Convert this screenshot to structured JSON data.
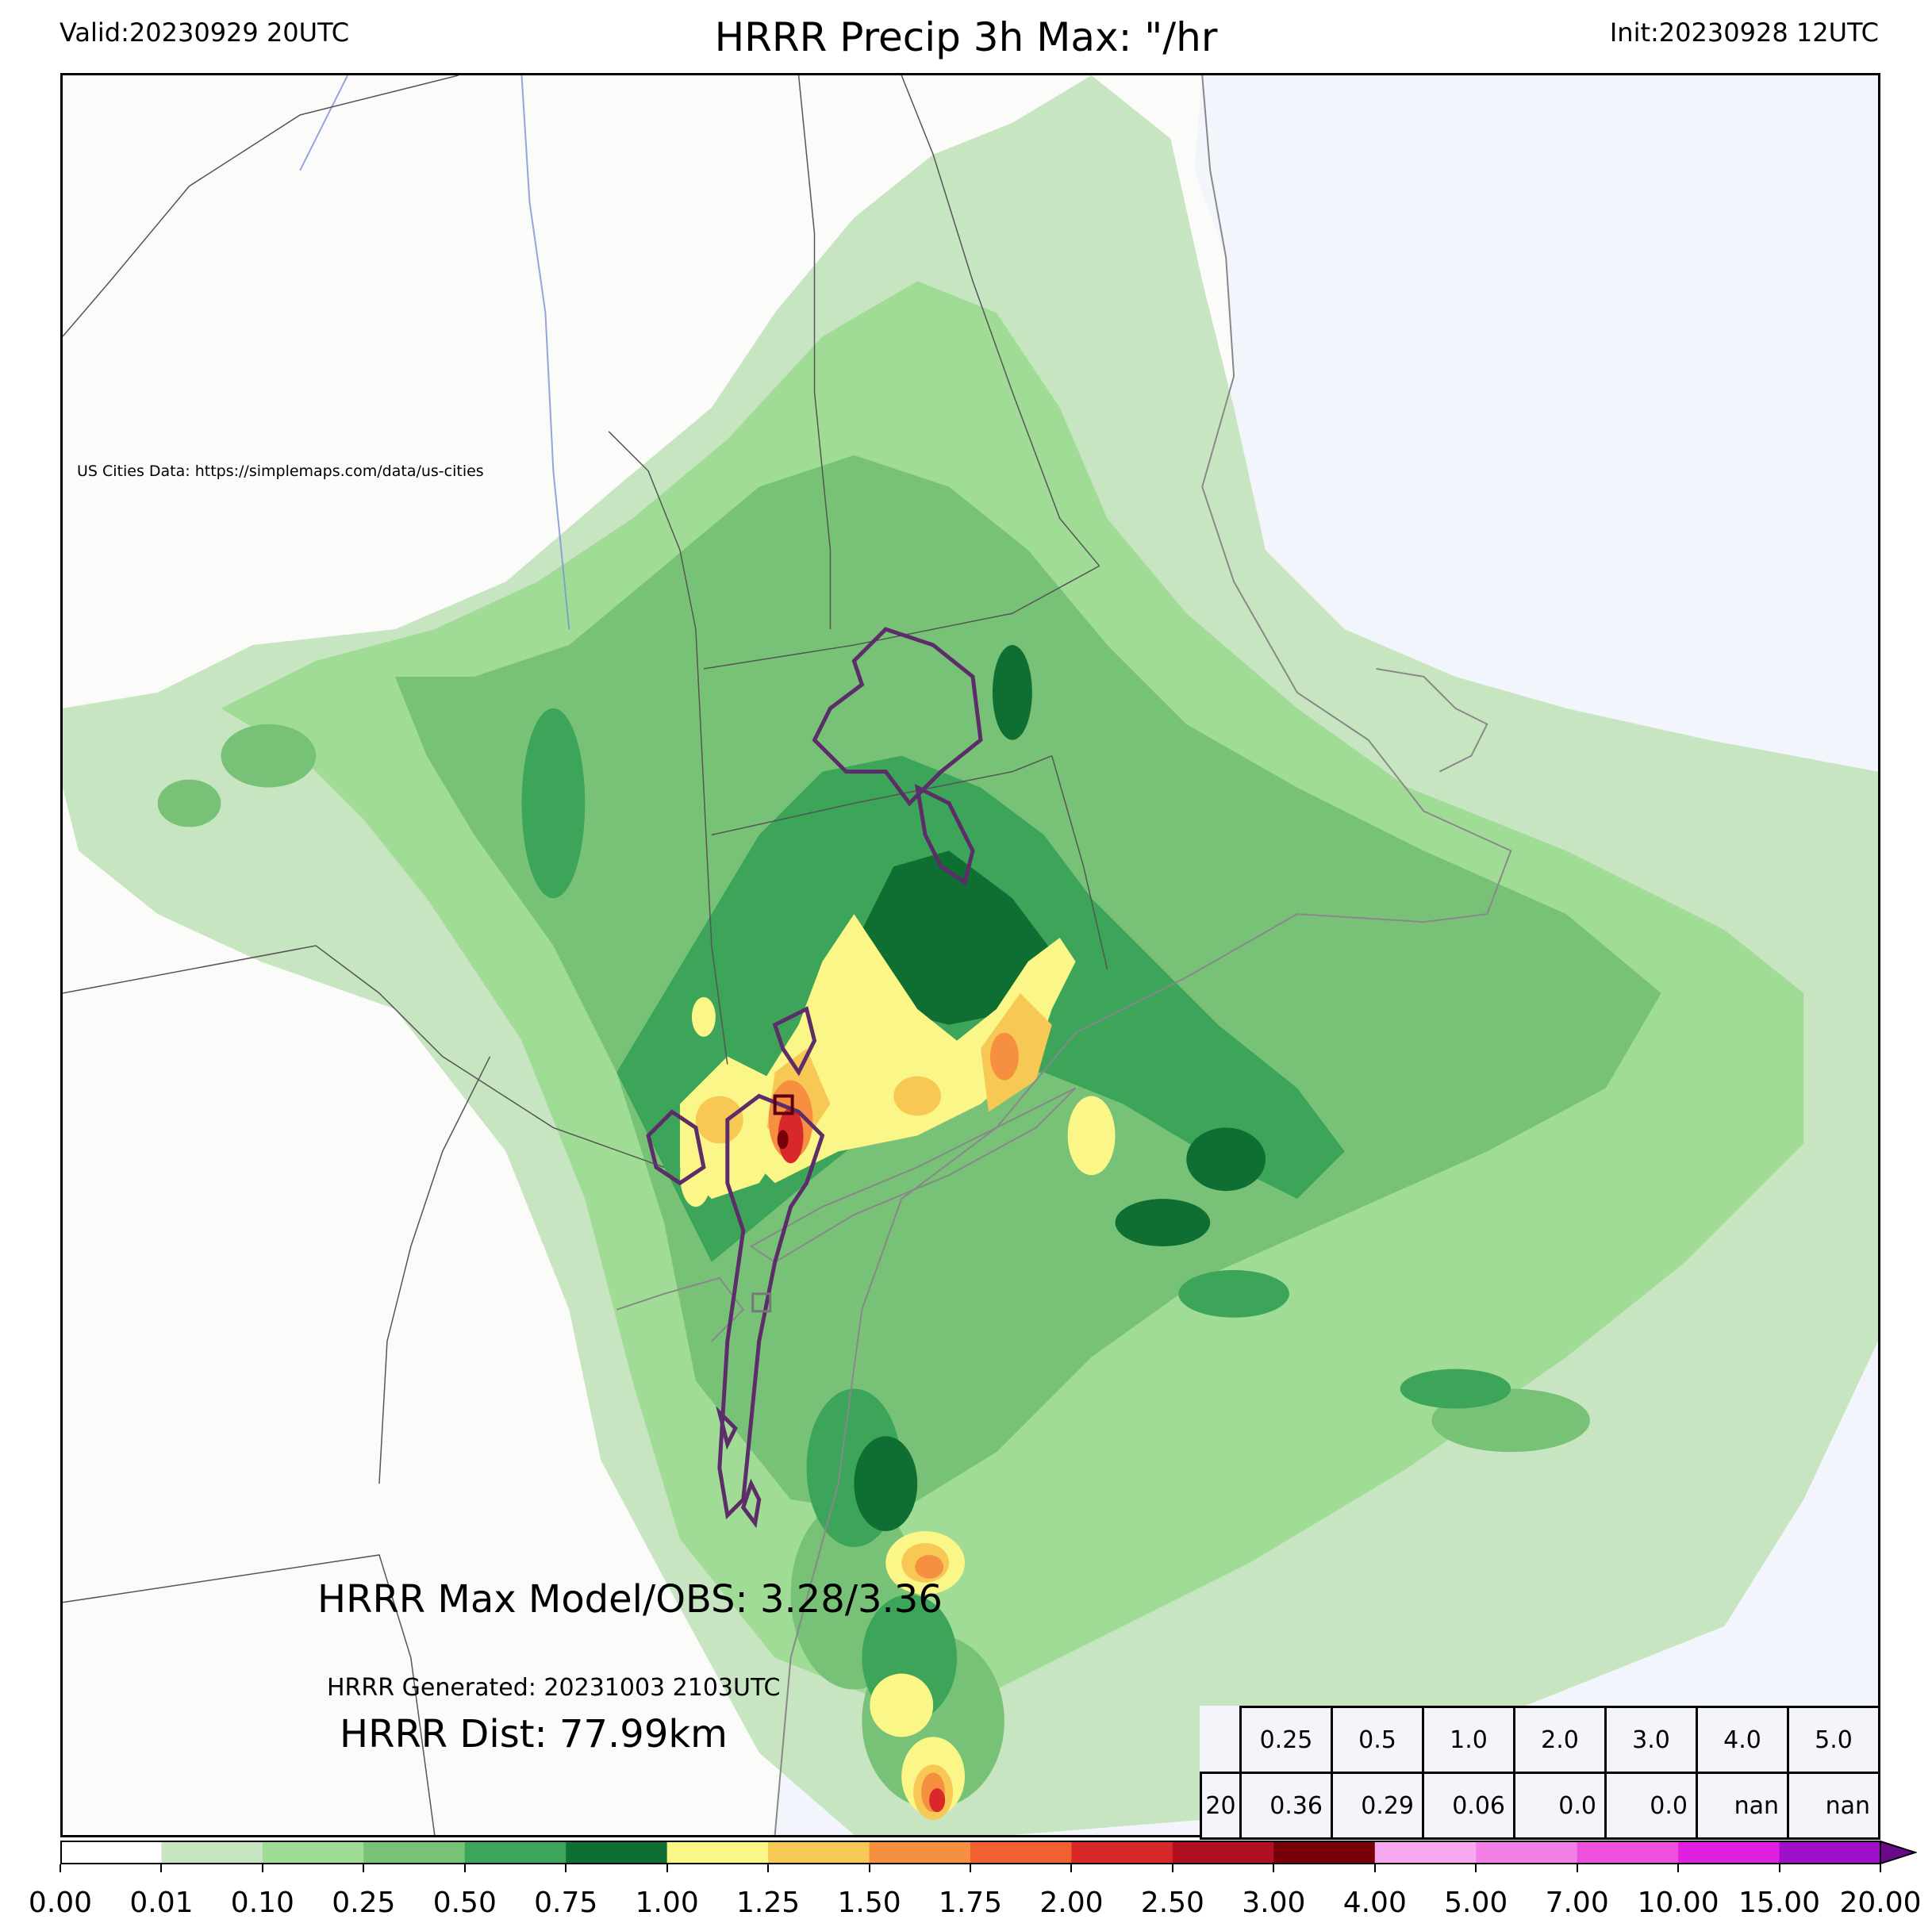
{
  "header": {
    "valid": "Valid:20230929 20UTC",
    "title": "HRRR Precip 3h Max: \"/hr",
    "init": "Init:20230928 12UTC"
  },
  "map": {
    "credit": "US Cities Data: https://simplemaps.com/data/us-cities",
    "colors": {
      "land": "#fbfbfa",
      "ocean": "#f2f5fb",
      "boundary": "#555555",
      "obs_contour": "#5c2d68"
    }
  },
  "stats": {
    "max_model_obs": "HRRR Max Model/OBS: 3.28/3.36",
    "generated": "HRRR Generated: 20231003 2103UTC",
    "distance": "HRRR Dist: 77.99km"
  },
  "threshold_table": {
    "headers": [
      "0.25",
      "0.5",
      "1.0",
      "2.0",
      "3.0",
      "4.0",
      "5.0"
    ],
    "row_label": "20",
    "values": [
      "0.36",
      "0.29",
      "0.06",
      "0.0",
      "0.0",
      "nan",
      "nan"
    ]
  },
  "colorbar": {
    "ticks": [
      "0.00",
      "0.01",
      "0.10",
      "0.25",
      "0.50",
      "0.75",
      "1.00",
      "1.25",
      "1.50",
      "1.75",
      "2.00",
      "2.50",
      "3.00",
      "4.00",
      "5.00",
      "7.00",
      "10.00",
      "15.00",
      "20.00"
    ],
    "colors": [
      "#ffffff",
      "#c8e5c2",
      "#a0dc96",
      "#78c278",
      "#3ca55a",
      "#0f6e32",
      "#fbf688",
      "#f8c855",
      "#f69040",
      "#f06030",
      "#d8282a",
      "#b01020",
      "#780008",
      "#f7a8ee",
      "#f280e6",
      "#ed50dc",
      "#e020e0",
      "#9e10c8"
    ],
    "extend_color": "#6a0a8a"
  }
}
